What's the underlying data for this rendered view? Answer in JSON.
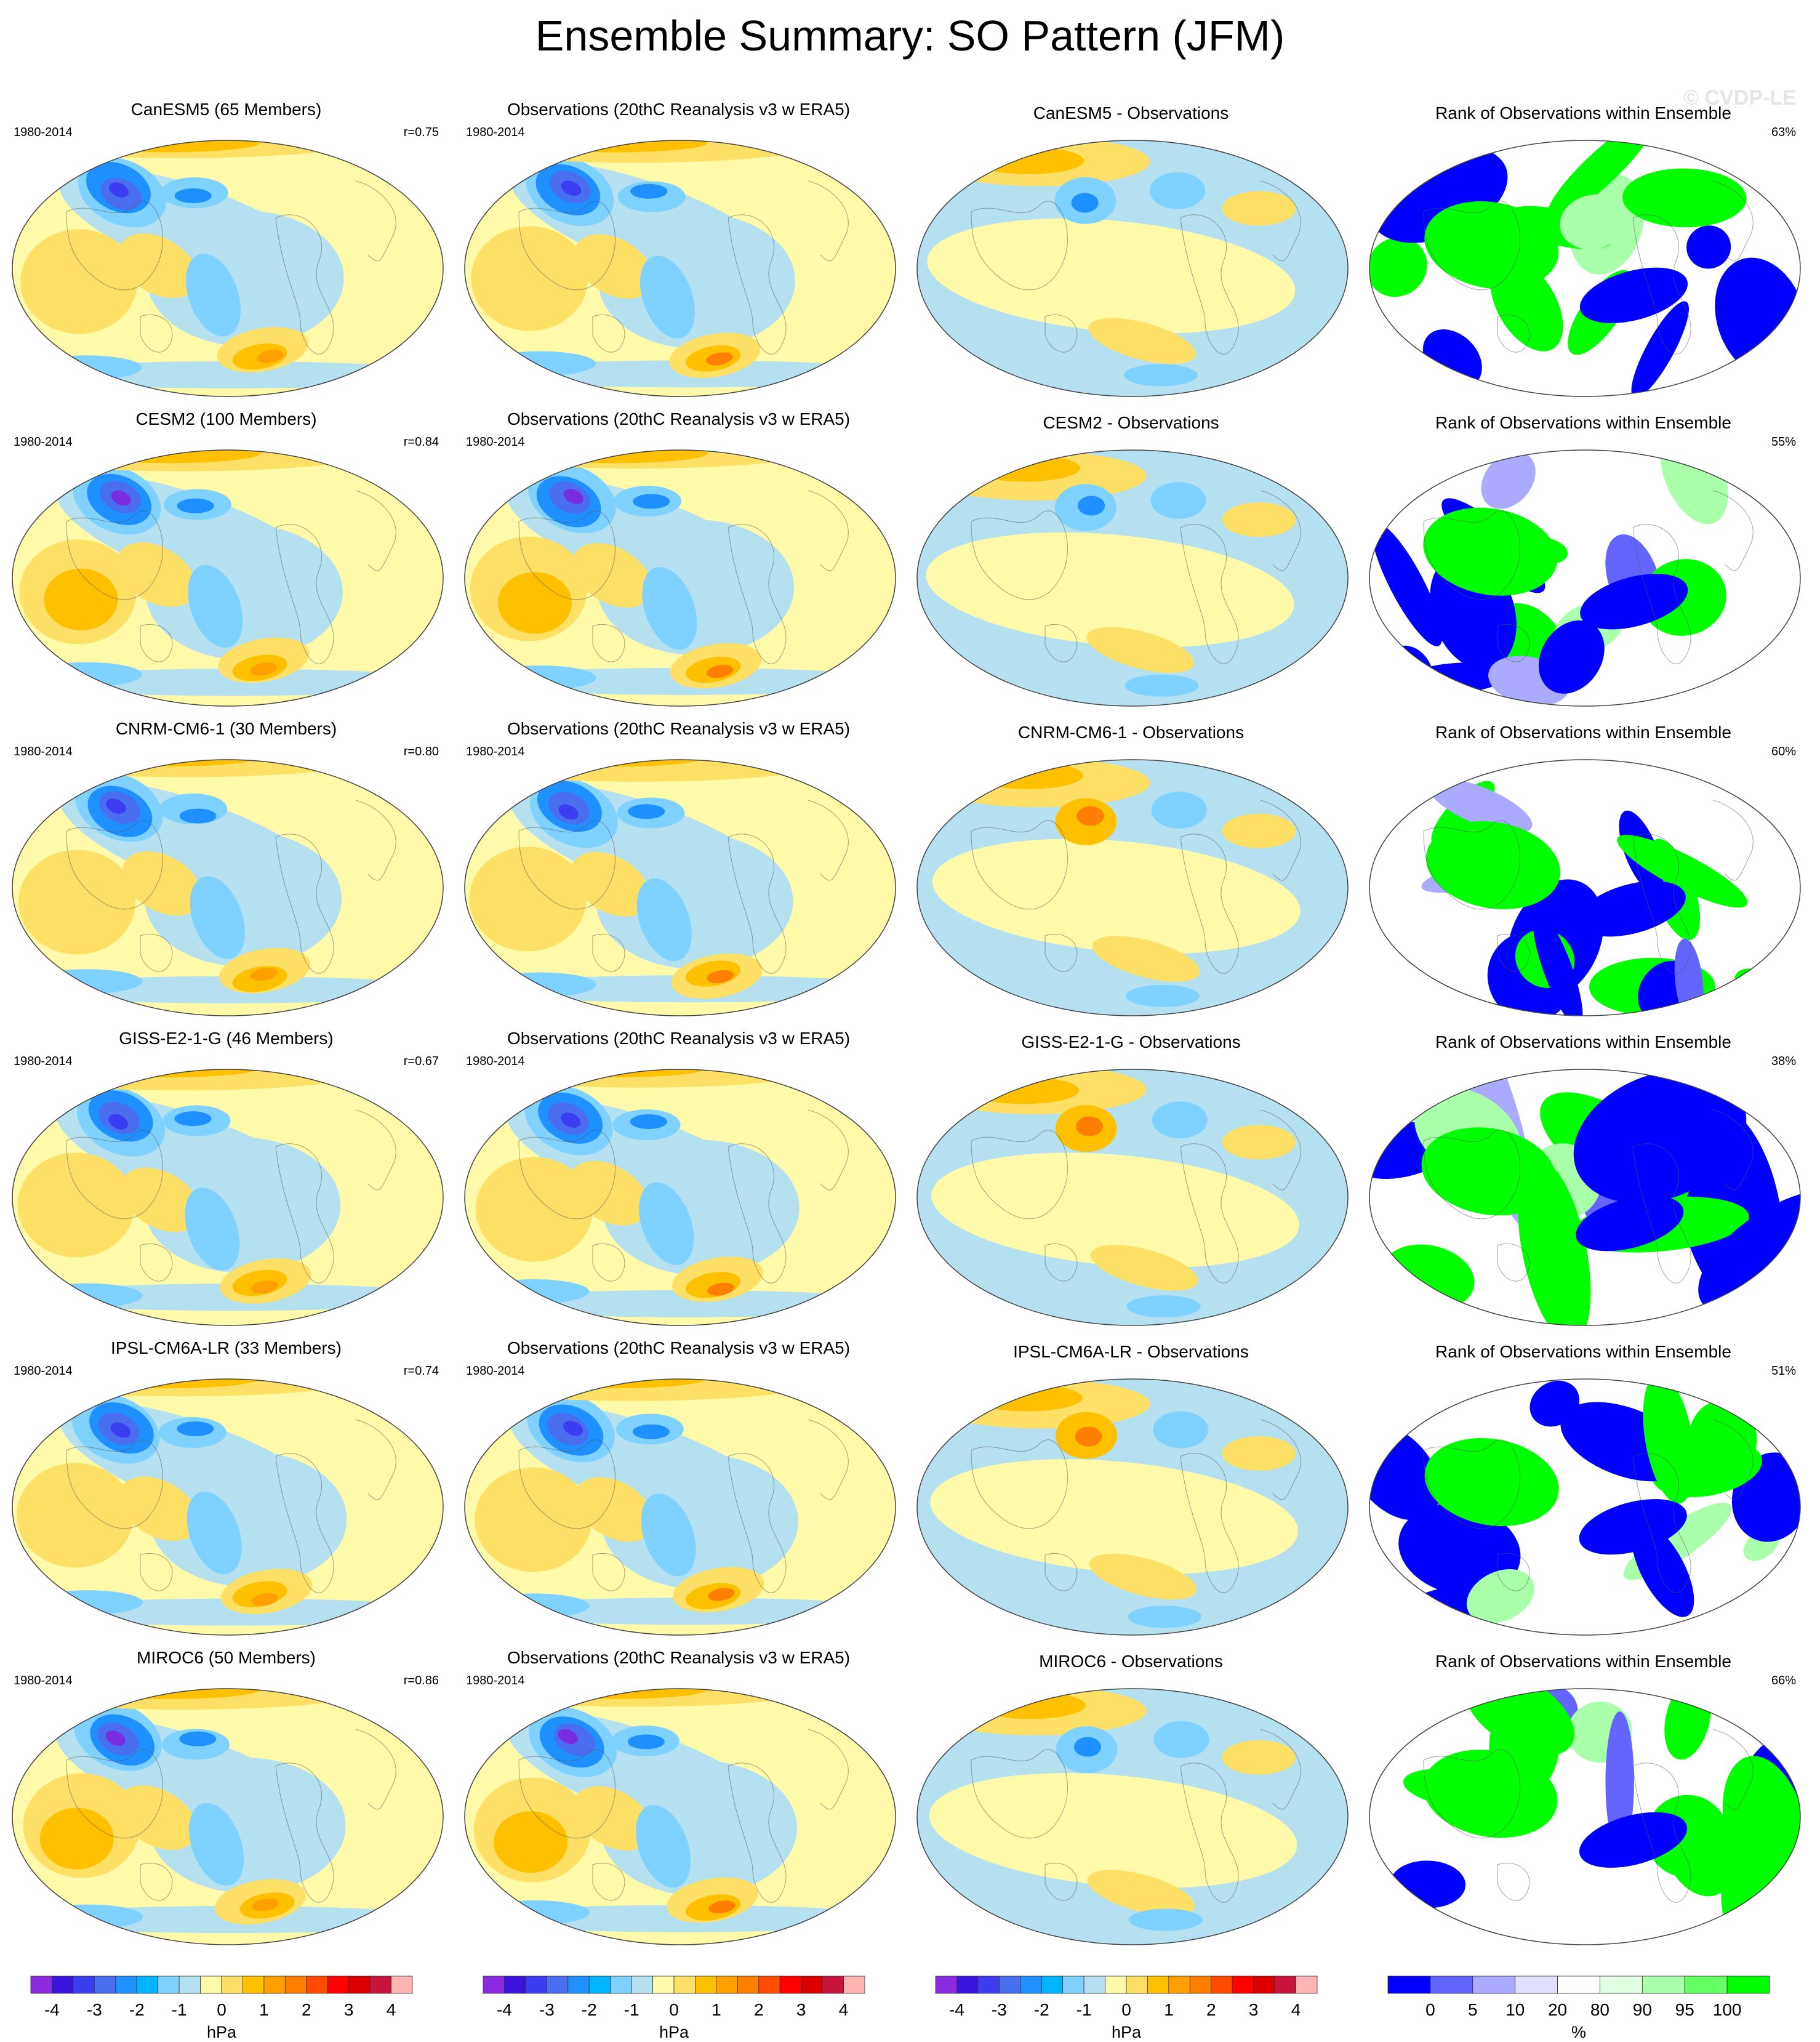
{
  "title": "Ensemble Summary: SO Pattern (JFM)",
  "watermark": "© CVDP-LE",
  "rows": [
    {
      "model_title": "CanESM5 (65 Members)",
      "obs_title": "Observations (20thC Reanalysis v3 w ERA5)",
      "diff_title": "CanESM5 - Observations",
      "rank_title": "Rank of Observations within Ensemble",
      "period": "1980-2014",
      "r": "r=0.75",
      "rank_pct": "63%"
    },
    {
      "model_title": "CESM2 (100 Members)",
      "obs_title": "Observations (20thC Reanalysis v3 w ERA5)",
      "diff_title": "CESM2 - Observations",
      "rank_title": "Rank of Observations within Ensemble",
      "period": "1980-2014",
      "r": "r=0.84",
      "rank_pct": "55%"
    },
    {
      "model_title": "CNRM-CM6-1 (30 Members)",
      "obs_title": "Observations (20thC Reanalysis v3 w ERA5)",
      "diff_title": "CNRM-CM6-1 - Observations",
      "rank_title": "Rank of Observations within Ensemble",
      "period": "1980-2014",
      "r": "r=0.80",
      "rank_pct": "60%"
    },
    {
      "model_title": "GISS-E2-1-G (46 Members)",
      "obs_title": "Observations (20thC Reanalysis v3 w ERA5)",
      "diff_title": "GISS-E2-1-G - Observations",
      "rank_title": "Rank of Observations within Ensemble",
      "period": "1980-2014",
      "r": "r=0.67",
      "rank_pct": "38%"
    },
    {
      "model_title": "IPSL-CM6A-LR (33 Members)",
      "obs_title": "Observations (20thC Reanalysis v3 w ERA5)",
      "diff_title": "IPSL-CM6A-LR - Observations",
      "rank_title": "Rank of Observations within Ensemble",
      "period": "1980-2014",
      "r": "r=0.74",
      "rank_pct": "51%"
    },
    {
      "model_title": "MIROC6 (50 Members)",
      "obs_title": "Observations (20thC Reanalysis v3 w ERA5)",
      "diff_title": "MIROC6 - Observations",
      "rank_title": "Rank of Observations within Ensemble",
      "period": "1980-2014",
      "r": "r=0.86",
      "rank_pct": "66%"
    }
  ],
  "colorbar_hpa": {
    "unit": "hPa",
    "ticks": [
      "-4",
      "-3",
      "-2",
      "-1",
      "0",
      "1",
      "2",
      "3",
      "4"
    ],
    "colors": [
      "#8a2be2",
      "#3b14dc",
      "#3c3cf0",
      "#4a6ef0",
      "#1e90ff",
      "#00b4ff",
      "#7fd2ff",
      "#b4e0f0",
      "#fffaaa",
      "#ffe066",
      "#ffc000",
      "#ffa000",
      "#ff7f00",
      "#ff4c00",
      "#ff0000",
      "#dc0000",
      "#c8143c",
      "#ffb4b4"
    ]
  },
  "colorbar_rank": {
    "unit": "%",
    "ticks": [
      "0",
      "5",
      "10",
      "20",
      "80",
      "90",
      "95",
      "100"
    ],
    "colors": [
      "#0000ff",
      "#6464ff",
      "#aaaaff",
      "#e0e0ff",
      "#ffffff",
      "#e0ffe0",
      "#aaffaa",
      "#64ff64",
      "#00ff00"
    ]
  },
  "chart_data": [
    {
      "type": "heatmap",
      "title": "CanESM5 (65 Members)",
      "x": "longitude",
      "y": "latitude",
      "colorbar_unit": "hPa",
      "annotations": [
        "1980-2014",
        "r=0.75"
      ]
    },
    {
      "type": "heatmap",
      "title": "Observations (20thC Reanalysis v3 w ERA5)",
      "colorbar_unit": "hPa",
      "annotations": [
        "1980-2014"
      ]
    },
    {
      "type": "heatmap",
      "title": "CanESM5 - Observations",
      "colorbar_unit": "hPa"
    },
    {
      "type": "heatmap",
      "title": "Rank of Observations within Ensemble",
      "colorbar_unit": "%",
      "annotations": [
        "63%"
      ]
    },
    {
      "type": "heatmap",
      "title": "CESM2 (100 Members)",
      "colorbar_unit": "hPa",
      "annotations": [
        "1980-2014",
        "r=0.84"
      ]
    },
    {
      "type": "heatmap",
      "title": "CESM2 - Observations",
      "colorbar_unit": "hPa"
    },
    {
      "type": "heatmap",
      "title": "Rank of Observations within Ensemble",
      "colorbar_unit": "%",
      "annotations": [
        "55%"
      ]
    },
    {
      "type": "heatmap",
      "title": "CNRM-CM6-1 (30 Members)",
      "colorbar_unit": "hPa",
      "annotations": [
        "1980-2014",
        "r=0.80"
      ]
    },
    {
      "type": "heatmap",
      "title": "CNRM-CM6-1 - Observations",
      "colorbar_unit": "hPa"
    },
    {
      "type": "heatmap",
      "title": "Rank of Observations within Ensemble",
      "colorbar_unit": "%",
      "annotations": [
        "60%"
      ]
    },
    {
      "type": "heatmap",
      "title": "GISS-E2-1-G (46 Members)",
      "colorbar_unit": "hPa",
      "annotations": [
        "1980-2014",
        "r=0.67"
      ]
    },
    {
      "type": "heatmap",
      "title": "GISS-E2-1-G - Observations",
      "colorbar_unit": "hPa"
    },
    {
      "type": "heatmap",
      "title": "Rank of Observations within Ensemble",
      "colorbar_unit": "%",
      "annotations": [
        "38%"
      ]
    },
    {
      "type": "heatmap",
      "title": "IPSL-CM6A-LR (33 Members)",
      "colorbar_unit": "hPa",
      "annotations": [
        "1980-2014",
        "r=0.74"
      ]
    },
    {
      "type": "heatmap",
      "title": "IPSL-CM6A-LR - Observations",
      "colorbar_unit": "hPa"
    },
    {
      "type": "heatmap",
      "title": "Rank of Observations within Ensemble",
      "colorbar_unit": "%",
      "annotations": [
        "51%"
      ]
    },
    {
      "type": "heatmap",
      "title": "MIROC6 (50 Members)",
      "colorbar_unit": "hPa",
      "annotations": [
        "1980-2014",
        "r=0.86"
      ]
    },
    {
      "type": "heatmap",
      "title": "MIROC6 - Observations",
      "colorbar_unit": "hPa"
    },
    {
      "type": "heatmap",
      "title": "Rank of Observations within Ensemble",
      "colorbar_unit": "%",
      "annotations": [
        "66%"
      ]
    }
  ]
}
